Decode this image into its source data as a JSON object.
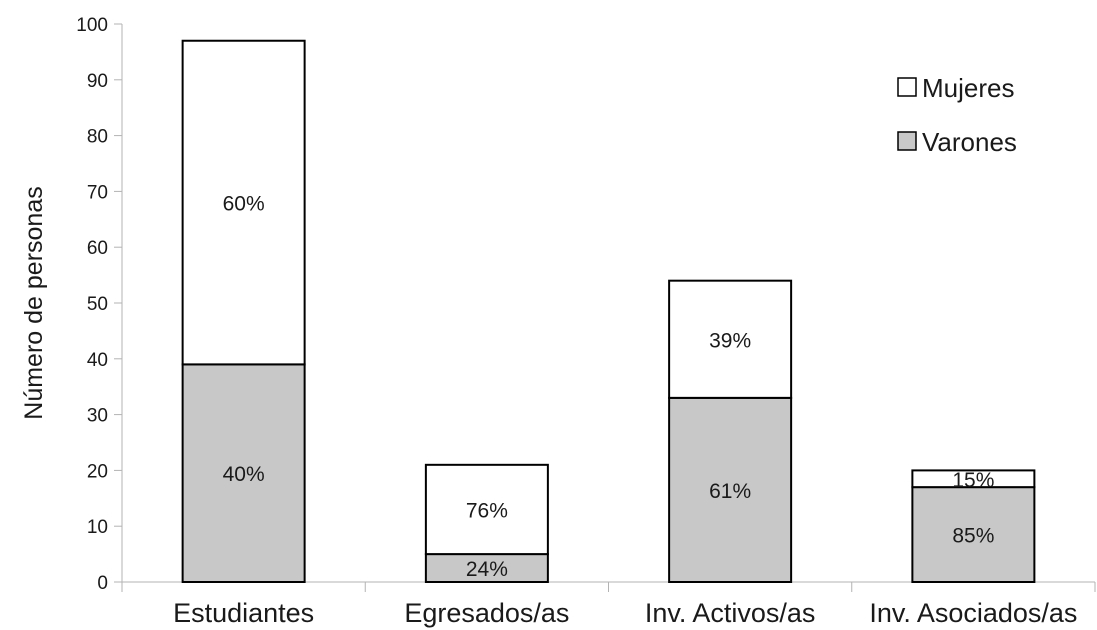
{
  "chart_data": {
    "type": "bar",
    "stacked": true,
    "title": "",
    "ylabel": "Número de personas",
    "xlabel": "",
    "ylim": [
      0,
      100
    ],
    "yticks": [
      0,
      10,
      20,
      30,
      40,
      50,
      60,
      70,
      80,
      90,
      100
    ],
    "categories": [
      "Estudiantes",
      "Egresados/as",
      "Inv. Activos/as",
      "Inv. Asociados/as"
    ],
    "series": [
      {
        "name": "Varones",
        "color": "#c8c8c8",
        "values": [
          39,
          5,
          33,
          17
        ],
        "labels": [
          "40%",
          "24%",
          "61%",
          "85%"
        ]
      },
      {
        "name": "Mujeres",
        "color": "#ffffff",
        "values": [
          58,
          16,
          21,
          3
        ],
        "labels": [
          "60%",
          "76%",
          "39%",
          "15%"
        ]
      }
    ],
    "legend": {
      "position": "top-right",
      "order": [
        "Mujeres",
        "Varones"
      ]
    },
    "grid": false
  }
}
